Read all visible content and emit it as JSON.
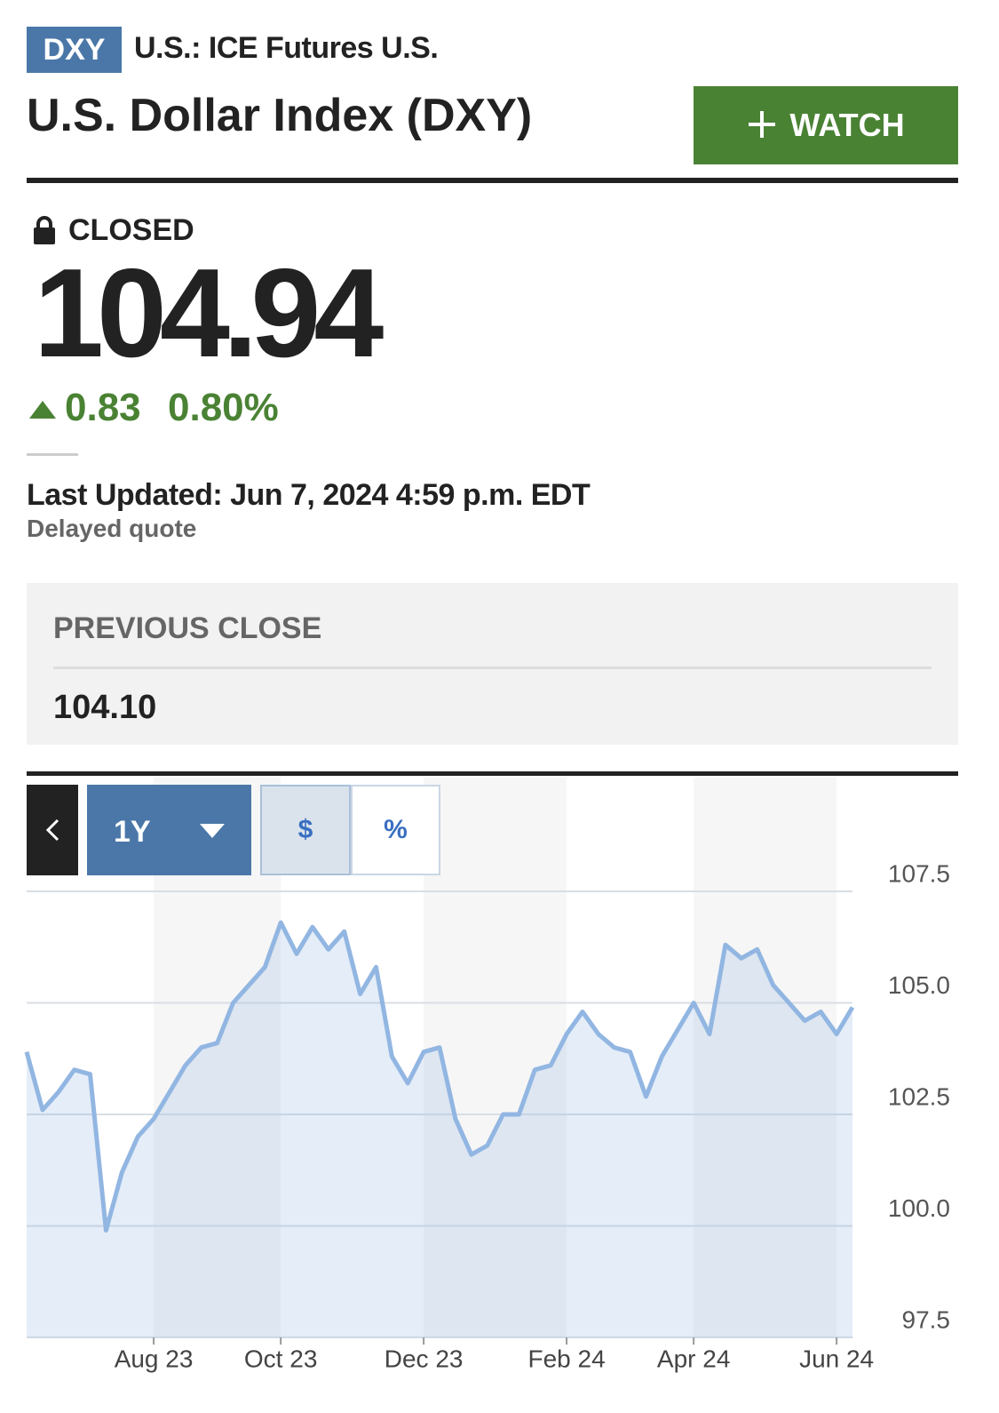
{
  "header": {
    "ticker": "DXY",
    "exchange": "U.S.: ICE Futures U.S.",
    "title": "U.S. Dollar Index (DXY)",
    "watch_button": "WATCH"
  },
  "quote": {
    "status": "CLOSED",
    "price": "104.94",
    "change": "0.83",
    "change_percent": "0.80%",
    "last_updated": "Last Updated: Jun 7, 2024 4:59 p.m. EDT",
    "delay_note": "Delayed quote"
  },
  "previous_close": {
    "label": "PREVIOUS CLOSE",
    "value": "104.10"
  },
  "chart_controls": {
    "range": "1Y",
    "dollar": "$",
    "percent": "%"
  },
  "chart_data": {
    "type": "line",
    "categories": [
      null,
      null,
      null,
      null,
      null,
      null,
      null,
      null,
      "Aug 23",
      null,
      null,
      null,
      null,
      null,
      null,
      null,
      "Oct 23",
      null,
      null,
      null,
      null,
      null,
      null,
      null,
      null,
      "Dec 23",
      null,
      null,
      null,
      null,
      null,
      null,
      null,
      null,
      "Feb 24",
      null,
      null,
      null,
      null,
      null,
      null,
      null,
      "Apr 24",
      null,
      null,
      null,
      null,
      null,
      null,
      null,
      null,
      "Jun 24",
      null
    ],
    "values": [
      103.9,
      102.6,
      103.0,
      103.5,
      103.4,
      99.9,
      101.2,
      102.0,
      102.4,
      103.0,
      103.6,
      104.0,
      104.1,
      105.0,
      105.4,
      105.8,
      106.8,
      106.1,
      106.7,
      106.2,
      106.6,
      105.2,
      105.8,
      103.8,
      103.2,
      103.9,
      104.0,
      102.4,
      101.6,
      101.8,
      102.5,
      102.5,
      103.5,
      103.6,
      104.3,
      104.8,
      104.3,
      104.0,
      103.9,
      102.9,
      103.8,
      104.4,
      105.0,
      104.3,
      106.3,
      106.0,
      106.2,
      105.4,
      105.0,
      104.6,
      104.8,
      104.3,
      104.9
    ],
    "color": "#92b6e2",
    "ylim": [
      97.5,
      107.5
    ],
    "yticks": [
      97.5,
      {
        "value": 100,
        "label": "100.0"
      },
      102.5,
      {
        "value": 105,
        "label": "105.0"
      },
      107.5
    ],
    "grid": true,
    "area": true
  }
}
